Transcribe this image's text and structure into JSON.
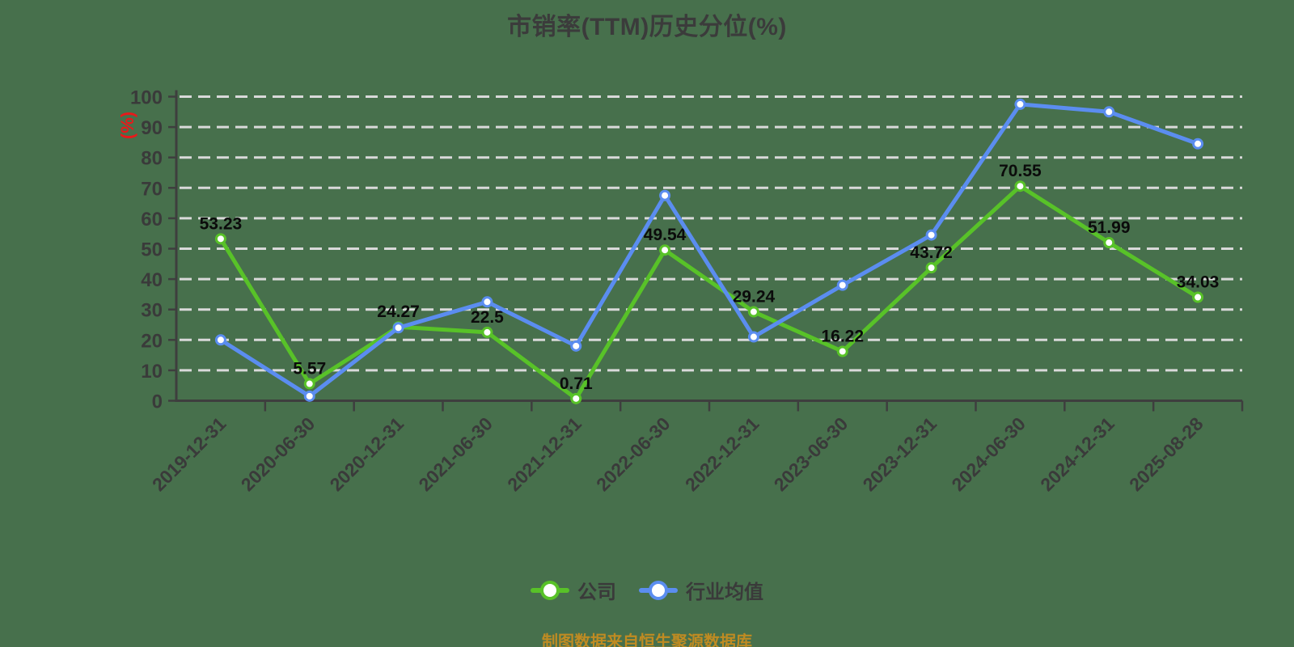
{
  "title": "市销率(TTM)历史分位(%)",
  "y_axis_name": "(%)",
  "source_note": "制图数据来自恒生聚源数据库",
  "colors": {
    "background": "#47704c",
    "company_series": "#58c228",
    "industry_series": "#5b8df0",
    "grid_line": "#d9d9d9",
    "axis_line": "#3e3e3e",
    "tick_text": "#3a3a3a",
    "data_label_text": "#0b0b0b",
    "y_axis_name_text": "#e8191a",
    "source_note_text": "#bf8b22",
    "marker_fill": "#ffffff"
  },
  "legend": [
    {
      "label": "公司",
      "color": "#58c228"
    },
    {
      "label": "行业均值",
      "color": "#5b8df0"
    }
  ],
  "chart_data": {
    "type": "line",
    "title": "市销率(TTM)历史分位(%)",
    "ylabel": "(%)",
    "xlabel": "",
    "ylim": [
      0,
      100
    ],
    "ytick_step": 10,
    "yticks": [
      0,
      10,
      20,
      30,
      40,
      50,
      60,
      70,
      80,
      90,
      100
    ],
    "grid": "horizontal dashed",
    "legend_position": "bottom-center",
    "categories": [
      "2019-12-31",
      "2020-06-30",
      "2020-12-31",
      "2021-06-30",
      "2021-12-31",
      "2022-06-30",
      "2022-12-31",
      "2023-06-30",
      "2023-12-31",
      "2024-06-30",
      "2024-12-31",
      "2025-08-28"
    ],
    "series": [
      {
        "name": "公司",
        "color": "#58c228",
        "show_data_labels": true,
        "values": [
          53.23,
          5.57,
          24.27,
          22.5,
          0.71,
          49.54,
          29.24,
          16.22,
          43.72,
          70.55,
          51.99,
          34.03
        ]
      },
      {
        "name": "行业均值",
        "color": "#5b8df0",
        "show_data_labels": false,
        "values": [
          20,
          1.5,
          24,
          32.5,
          18,
          67.5,
          21,
          38,
          54.5,
          97.5,
          95,
          84.5
        ]
      }
    ]
  }
}
